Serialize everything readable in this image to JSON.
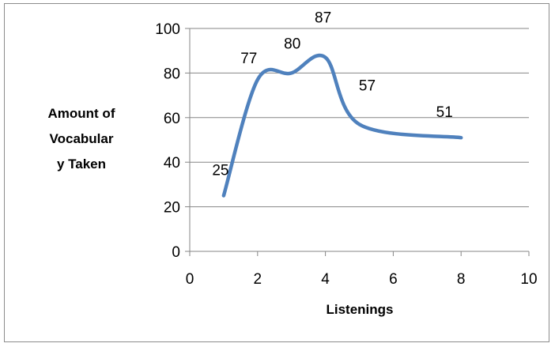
{
  "chart_data": {
    "type": "line",
    "title": "",
    "xlabel": "Listenings",
    "ylabel_lines": [
      "Amount of",
      "Vocabular",
      "y Taken"
    ],
    "xlim": [
      0,
      10
    ],
    "ylim": [
      0,
      100
    ],
    "xticks": [
      0,
      2,
      4,
      6,
      8,
      10
    ],
    "yticks": [
      0,
      20,
      40,
      60,
      80,
      100
    ],
    "grid": "horizontal",
    "legend": "none",
    "smooth": true,
    "series": [
      {
        "color": "#4f81bd",
        "points": [
          {
            "x": 1,
            "y": 25,
            "label": "25"
          },
          {
            "x": 2,
            "y": 77,
            "label": "77"
          },
          {
            "x": 3,
            "y": 80,
            "label": "80"
          },
          {
            "x": 4,
            "y": 87,
            "label": "87"
          },
          {
            "x": 5,
            "y": 57,
            "label": "57"
          },
          {
            "x": 8,
            "y": 51,
            "label": "51"
          }
        ]
      }
    ]
  }
}
